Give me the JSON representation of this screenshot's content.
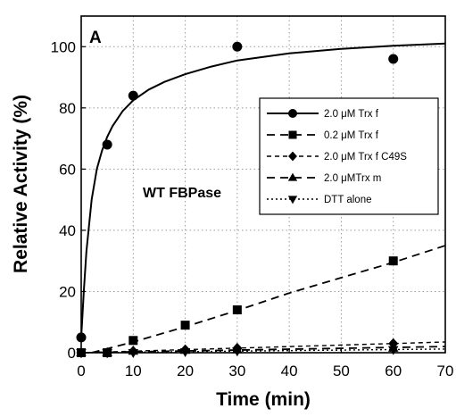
{
  "chart_data": {
    "type": "scatter",
    "panel_label": "A",
    "annotation": "WT FBPase",
    "xlabel": "Time (min)",
    "ylabel": "Relative Activity (%)",
    "xlim": [
      0,
      70
    ],
    "ylim": [
      0,
      110
    ],
    "x_ticks": [
      "0",
      "10",
      "20",
      "30",
      "40",
      "50",
      "60",
      "70"
    ],
    "y_ticks": [
      "0",
      "20",
      "40",
      "60",
      "80",
      "100"
    ],
    "grid": true,
    "legend_position": "right",
    "series": [
      {
        "name": "2.0 μM Trx f",
        "marker": "circle",
        "line": "solid",
        "points": [
          [
            0,
            5
          ],
          [
            5,
            68
          ],
          [
            10,
            84
          ],
          [
            30,
            100
          ],
          [
            60,
            96
          ]
        ],
        "fit": [
          [
            0,
            5
          ],
          [
            0.5,
            20
          ],
          [
            1,
            33
          ],
          [
            2,
            50
          ],
          [
            3,
            60
          ],
          [
            4,
            66
          ],
          [
            5,
            70.5
          ],
          [
            6,
            74
          ],
          [
            8,
            79
          ],
          [
            10,
            82.5
          ],
          [
            13,
            86
          ],
          [
            16,
            88.5
          ],
          [
            20,
            91
          ],
          [
            25,
            93.5
          ],
          [
            30,
            95.5
          ],
          [
            40,
            97.8
          ],
          [
            50,
            99.3
          ],
          [
            60,
            100.3
          ],
          [
            70,
            101
          ]
        ]
      },
      {
        "name": "0.2 μM Trx f",
        "marker": "square",
        "line": "dashed",
        "points": [
          [
            0,
            0
          ],
          [
            5,
            0
          ],
          [
            10,
            4
          ],
          [
            20,
            9
          ],
          [
            30,
            14
          ],
          [
            60,
            30
          ]
        ],
        "fit": [
          [
            2,
            0
          ],
          [
            10,
            3.5
          ],
          [
            20,
            8.5
          ],
          [
            30,
            13.8
          ],
          [
            40,
            19.5
          ],
          [
            50,
            24.5
          ],
          [
            60,
            29.5
          ],
          [
            70,
            35
          ]
        ]
      },
      {
        "name": "2.0 μM Trx f C49S",
        "marker": "diamond",
        "line": "short-dashed",
        "points": [
          [
            0,
            0
          ],
          [
            5,
            0
          ],
          [
            10,
            0.5
          ],
          [
            20,
            1
          ],
          [
            30,
            1.5
          ],
          [
            60,
            3
          ]
        ],
        "fit": [
          [
            0,
            0
          ],
          [
            70,
            3.5
          ]
        ]
      },
      {
        "name": "2.0 μMTrx m",
        "marker": "triangle-up",
        "line": "dashed",
        "points": [
          [
            0,
            0
          ],
          [
            5,
            0
          ],
          [
            10,
            0.5
          ],
          [
            20,
            0.8
          ],
          [
            30,
            1
          ],
          [
            60,
            1.5
          ]
        ],
        "fit": [
          [
            0,
            0
          ],
          [
            70,
            2
          ]
        ]
      },
      {
        "name": "DTT alone",
        "marker": "triangle-down",
        "line": "dotted",
        "points": [
          [
            0,
            0
          ],
          [
            5,
            0
          ],
          [
            10,
            0
          ],
          [
            20,
            0.3
          ],
          [
            30,
            0.5
          ],
          [
            60,
            1
          ]
        ],
        "fit": [
          [
            0,
            0
          ],
          [
            70,
            1.2
          ]
        ]
      }
    ]
  }
}
